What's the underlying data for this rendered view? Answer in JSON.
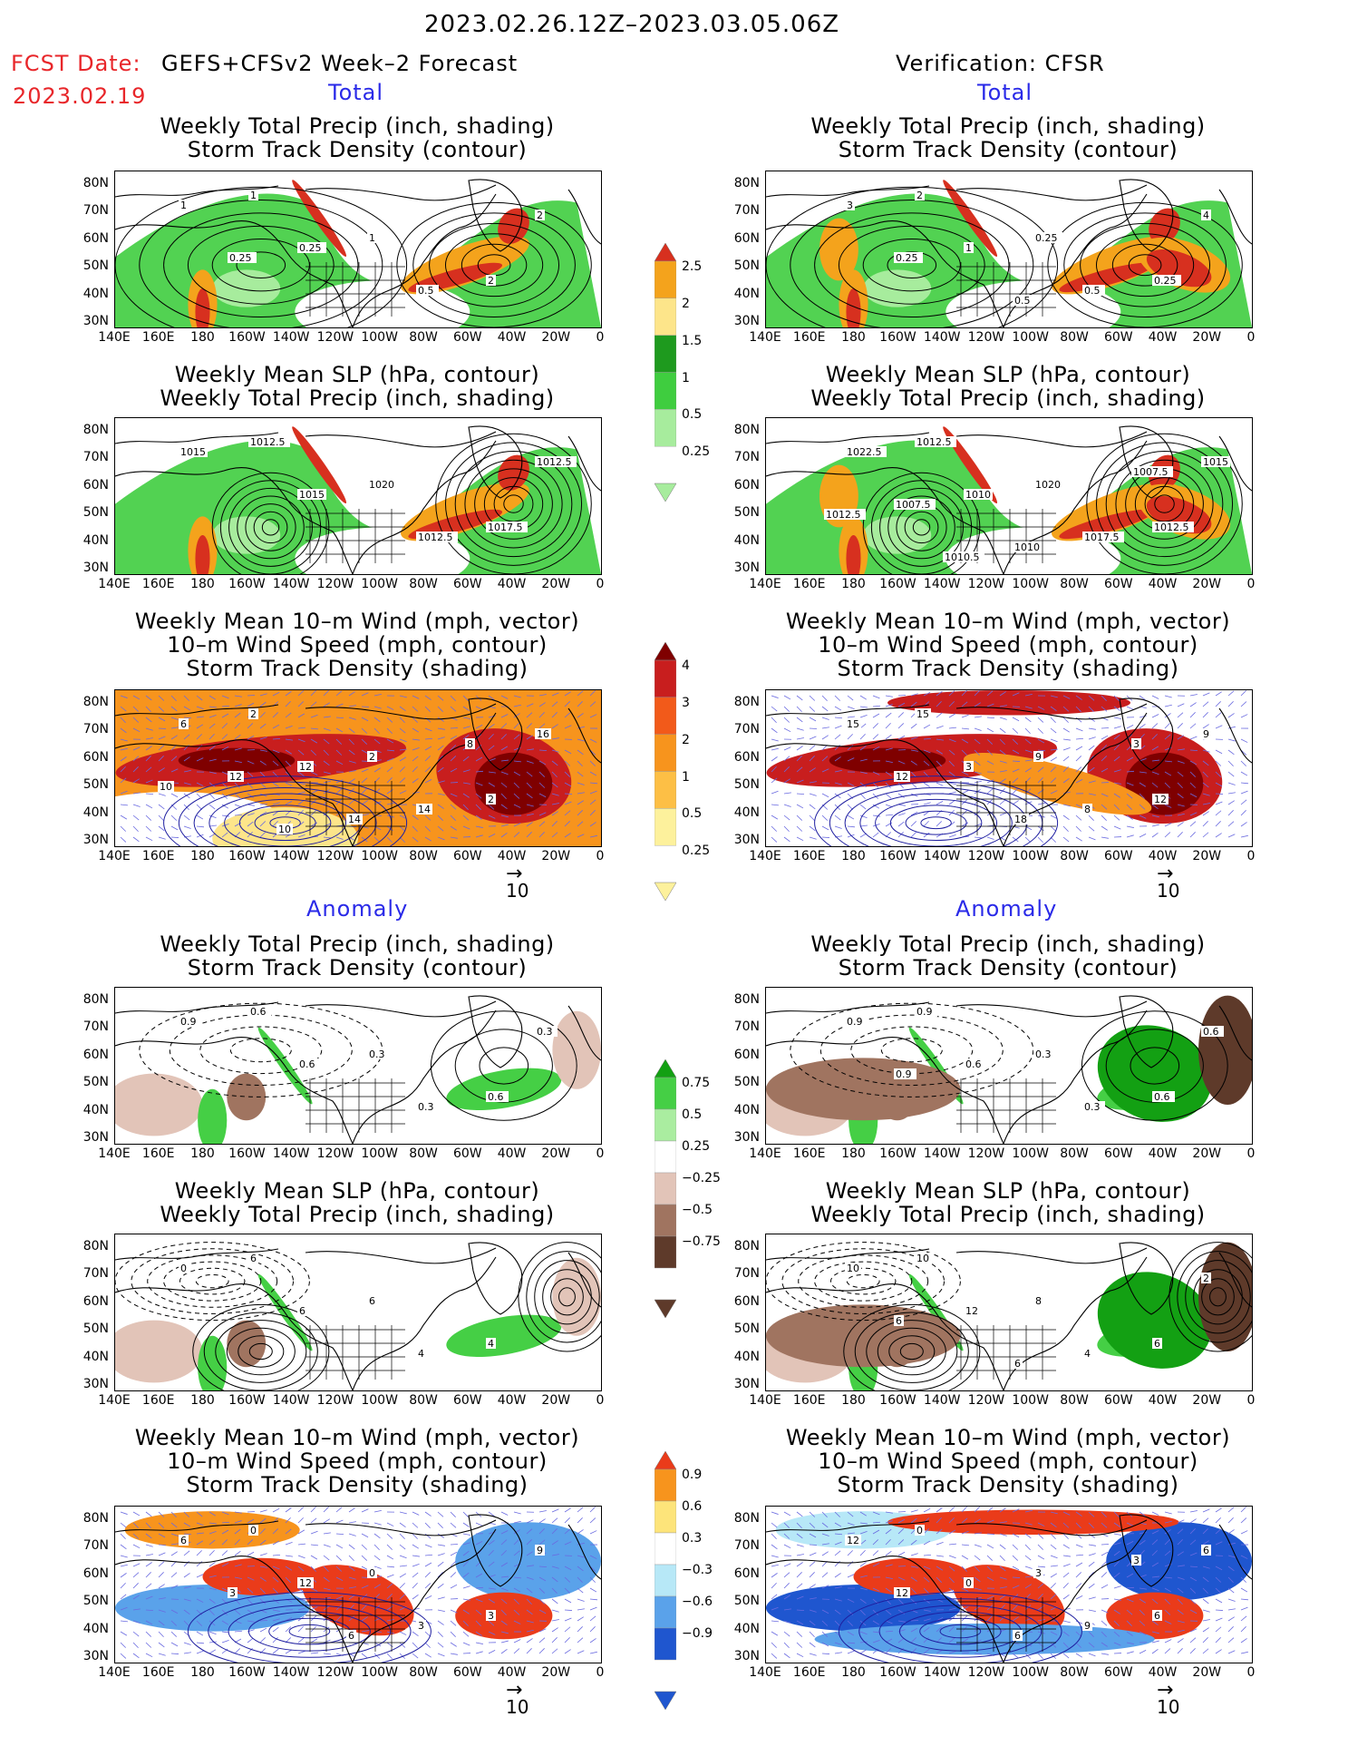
{
  "header": {
    "period": "2023.02.26.12Z–2023.03.05.06Z",
    "fcst_label": "FCST Date:",
    "fcst_model": "GEFS+CFSv2 Week–2 Forecast",
    "fcst_date": "2023.02.19",
    "verif": "Verification: CFSR"
  },
  "sections": {
    "total": "Total",
    "anomaly": "Anomaly"
  },
  "panel_titles": {
    "precip_track": [
      "Weekly Total Precip (inch, shading)",
      "Storm Track Density (contour)"
    ],
    "slp_precip": [
      "Weekly Mean SLP (hPa, contour)",
      "Weekly Total Precip (inch, shading)"
    ],
    "wind": [
      "Weekly Mean 10–m Wind (mph, vector)",
      "10–m Wind Speed (mph, contour)",
      "Storm Track Density (shading)"
    ]
  },
  "axes": {
    "lat_ticks": [
      "80N",
      "70N",
      "60N",
      "50N",
      "40N",
      "30N"
    ],
    "lon_ticks": [
      "140E",
      "160E",
      "180",
      "160W",
      "140W",
      "120W",
      "100W",
      "80W",
      "60W",
      "40W",
      "20W",
      "0"
    ]
  },
  "vector_ref": "10",
  "colorbars": {
    "precip_total": {
      "labels": [
        "2.5",
        "2",
        "1.5",
        "1",
        "0.5",
        "0.25"
      ],
      "colors": [
        "#d7301f",
        "#f4a31c",
        "#fde58a",
        "#1e9a1e",
        "#3fcd3f",
        "#a7ec9d"
      ]
    },
    "track_total": {
      "labels": [
        "4",
        "3",
        "2",
        "1",
        "0.5",
        "0.25"
      ],
      "colors": [
        "#7f0000",
        "#c81e1e",
        "#f25a1a",
        "#f7941d",
        "#fdbf45",
        "#fdf19c"
      ]
    },
    "precip_anom": {
      "labels": [
        "0.75",
        "0.5",
        "0.25",
        "−0.25",
        "−0.5",
        "−0.75"
      ],
      "colors": [
        "#13a013",
        "#45cf45",
        "#aaeda0",
        "#ffffff",
        "#e2c4b8",
        "#a07460",
        "#5e3a2a"
      ]
    },
    "track_anom": {
      "labels": [
        "0.9",
        "0.6",
        "0.3",
        "−0.3",
        "−0.6",
        "−0.9"
      ],
      "colors": [
        "#ea3b1a",
        "#f7941d",
        "#fde47a",
        "#ffffff",
        "#b7e8f7",
        "#5aa2ea",
        "#1f56cf"
      ]
    }
  },
  "contour_labels": {
    "r1_left": [
      "1",
      "1",
      "2",
      "1",
      "0.25",
      "0.5",
      "2",
      "0.25"
    ],
    "r1_right": [
      "2",
      "0.25",
      "0.25",
      "3",
      "1",
      "0.5",
      "4",
      "0.25",
      "0.5"
    ],
    "r2_left": [
      "1012.5",
      "1020",
      "1017.5",
      "1015",
      "1015",
      "1012.5",
      "1012.5"
    ],
    "r2_right": [
      "1012.5",
      "1020",
      "1012.5",
      "1022.5",
      "1010",
      "1017.5",
      "1015",
      "1007.5",
      "1010",
      "1007.5",
      "1012.5",
      "1010.5"
    ],
    "r3_left": [
      "2",
      "2",
      "2",
      "6",
      "12",
      "14",
      "16",
      "12",
      "14",
      "8",
      "10",
      "10"
    ],
    "r3_right": [
      "15",
      "9",
      "12",
      "15",
      "3",
      "8",
      "9",
      "12",
      "18",
      "3"
    ],
    "r4_left": [
      "0.6",
      "0.3",
      "0.6",
      "0.9",
      "0.6",
      "0.3",
      "0.3"
    ],
    "r4_right": [
      "0.9",
      "0.3",
      "0.6",
      "0.9",
      "0.6",
      "0.3",
      "0.6",
      "0.9"
    ],
    "r5_left": [
      "6",
      "6",
      "4",
      "0",
      "6",
      "4"
    ],
    "r5_right": [
      "10",
      "8",
      "6",
      "10",
      "12",
      "4",
      "2",
      "6",
      "6"
    ],
    "r6_left": [
      "0",
      "0",
      "3",
      "6",
      "12",
      "3",
      "9",
      "3",
      "6"
    ],
    "r6_right": [
      "0",
      "3",
      "6",
      "12",
      "0",
      "9",
      "6",
      "12",
      "6",
      "3"
    ]
  }
}
